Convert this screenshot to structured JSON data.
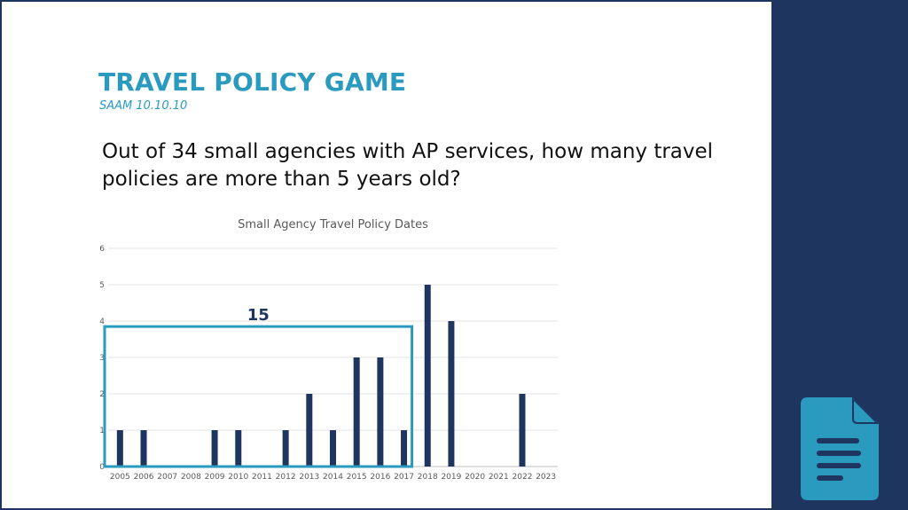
{
  "slide": {
    "title": "TRAVEL POLICY GAME",
    "subtitle": "SAAM 10.10.10",
    "question": "Out of 34 small agencies with AP services, how many travel policies are more than 5 years old?"
  },
  "colors": {
    "sidebar": "#1e3560",
    "accent": "#2a9bbf",
    "bar": "#1e3560",
    "highlight_box": "#2a9bbf",
    "icon": "#2a9bbf"
  },
  "icons": {
    "sidebar_icon": "document-icon"
  },
  "chart_data": {
    "type": "bar",
    "title": "Small Agency Travel Policy Dates",
    "categories": [
      "2005",
      "2006",
      "2007",
      "2008",
      "2009",
      "2010",
      "2011",
      "2012",
      "2013",
      "2014",
      "2015",
      "2016",
      "2017",
      "2018",
      "2019",
      "2020",
      "2021",
      "2022",
      "2023"
    ],
    "values": [
      1,
      1,
      0,
      0,
      1,
      1,
      0,
      1,
      2,
      1,
      3,
      3,
      1,
      5,
      4,
      0,
      0,
      2,
      0
    ],
    "ylim": [
      0,
      6
    ],
    "yticks": [
      0,
      1,
      2,
      3,
      4,
      5,
      6
    ],
    "grid": true,
    "annotation": {
      "label": "15",
      "from": "2005",
      "to": "2017"
    }
  }
}
